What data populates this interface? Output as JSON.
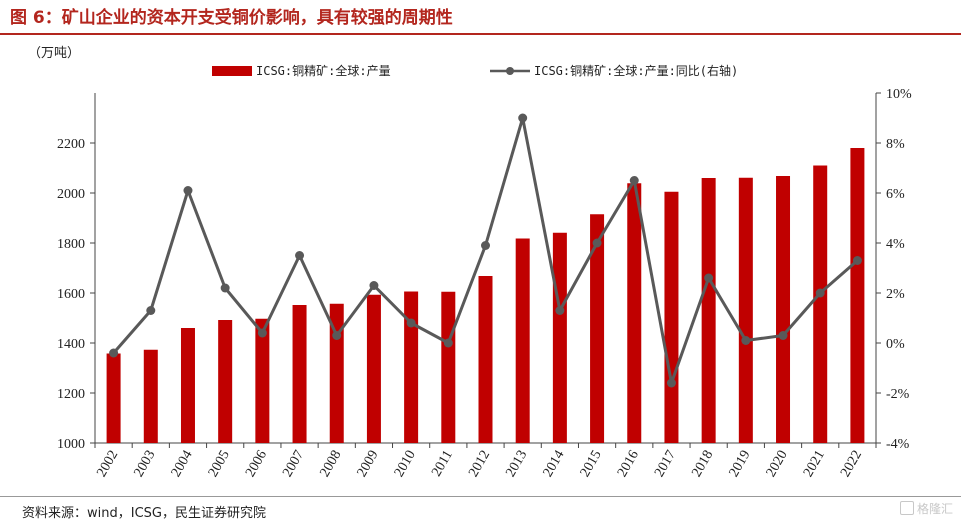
{
  "header": {
    "title": "图 6：矿山企业的资本开支受铜价影响，具有较强的周期性",
    "unit": "（万吨）"
  },
  "footer": {
    "source": "资料来源：wind，ICSG，民生证券研究院",
    "watermark": "格隆汇"
  },
  "colors": {
    "bar": "#c00000",
    "line": "#595959",
    "title": "#b3261e"
  },
  "chart_data": {
    "type": "bar",
    "categories": [
      "2002",
      "2003",
      "2004",
      "2005",
      "2006",
      "2007",
      "2008",
      "2009",
      "2010",
      "2011",
      "2012",
      "2013",
      "2014",
      "2015",
      "2016",
      "2017",
      "2018",
      "2019",
      "2020",
      "2021",
      "2022"
    ],
    "series": [
      {
        "name": "ICSG:铜精矿:全球:产量",
        "type": "bar",
        "axis": "left",
        "values": [
          1358,
          1373,
          1460,
          1492,
          1497,
          1552,
          1557,
          1593,
          1606,
          1605,
          1668,
          1818,
          1841,
          1915,
          2039,
          2005,
          2060,
          2061,
          2068,
          2110,
          2180
        ]
      },
      {
        "name": "ICSG:铜精矿:全球:产量:同比(右轴)",
        "type": "line",
        "axis": "right",
        "values": [
          -0.4,
          1.3,
          6.1,
          2.2,
          0.4,
          3.5,
          0.3,
          2.3,
          0.8,
          0.0,
          3.9,
          9.0,
          1.3,
          4.0,
          6.5,
          -1.6,
          2.6,
          0.1,
          0.3,
          2.0,
          3.3
        ]
      }
    ],
    "y_left": {
      "ylim": [
        1000,
        2400
      ],
      "ticks": [
        "1000",
        "1200",
        "1400",
        "1600",
        "1800",
        "2000",
        "2200"
      ]
    },
    "y_right": {
      "ylim": [
        -4,
        10
      ],
      "ticks": [
        "-4%",
        "-2%",
        "0%",
        "2%",
        "4%",
        "6%",
        "8%",
        "10%"
      ]
    },
    "legend": "top"
  }
}
